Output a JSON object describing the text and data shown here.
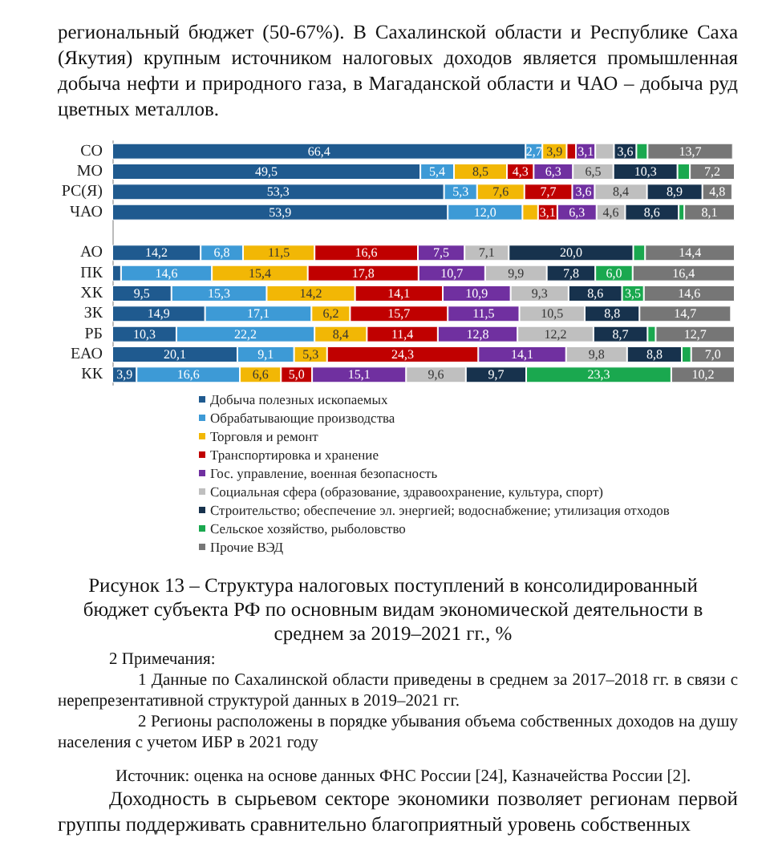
{
  "chart_data": {
    "type": "bar",
    "orientation": "horizontal",
    "stacked": true,
    "title": "Рисунок 13 – Структура налоговых поступлений в консолидированный бюджет субъекта РФ по основным видам экономической деятельности в среднем за 2019–2021 гг., %",
    "annotations": [
      "региональный бюджет (50-67%). В Сахалинской области и Республике Саха (Якутия) крупным источником налоговых доходов является промышленная добыча нефти и природного газа, в Магаданской области и ЧАО – добыча руд цветных металлов.",
      "2 Примечания:",
      "1 Данные по Сахалинской области приведены в среднем за 2017–2018 гг. в связи с нерепрезентативной структурой данных в 2019–2021 гг.",
      "2 Регионы расположены в порядке убывания объема собственных доходов на душу населения с учетом ИБР в 2021 году",
      "Источник: оценка на основе данных ФНС России [24], Казначейства России [2].",
      "Доходность в сырьевом секторе экономики позволяет регионам первой группы поддерживать сравнительно благоприятный уровень собственных"
    ],
    "categories": [
      "СО",
      "МО",
      "РС(Я)",
      "ЧАО",
      null,
      "АО",
      "ПК",
      "ХК",
      "ЗК",
      "РБ",
      "ЕАО",
      "КК"
    ],
    "xlim": [
      0,
      100
    ],
    "tick_labels": "y",
    "grid": false,
    "legend": "bottom",
    "series": [
      {
        "name": "Добыча полезных ископаемых",
        "color": "#1f5a8f",
        "values": [
          66.4,
          49.5,
          53.3,
          53.9,
          null,
          14.2,
          1.4,
          9.5,
          14.9,
          10.3,
          20.1,
          3.9
        ],
        "value_labels": [
          "66,4",
          "49,5",
          "53,3",
          "53,9",
          null,
          "14,2",
          null,
          "9,5",
          "14,9",
          "10,3",
          "20,1",
          "3,9"
        ]
      },
      {
        "name": "Обрабатывающие производства",
        "color": "#3d9ad6",
        "values": [
          2.7,
          5.4,
          5.3,
          12.0,
          null,
          6.8,
          14.6,
          15.3,
          17.1,
          22.2,
          9.1,
          16.6
        ],
        "value_labels": [
          "2,7",
          "5,4",
          "5,3",
          "12,0",
          null,
          "6,8",
          "14,6",
          "15,3",
          "17,1",
          "22,2",
          "9,1",
          "16,6"
        ]
      },
      {
        "name": "Торговля и ремонт",
        "color": "#f2b705",
        "values": [
          3.9,
          8.5,
          7.6,
          2.5,
          null,
          11.5,
          15.4,
          14.2,
          6.2,
          8.4,
          5.3,
          6.6
        ],
        "value_labels": [
          "3,9",
          "8,5",
          "7,6",
          null,
          null,
          "11,5",
          "15,4",
          "14,2",
          "6,2",
          "8,4",
          "5,3",
          "6,6"
        ]
      },
      {
        "name": "Транспортировка и хранение",
        "color": "#c00000",
        "values": [
          1.5,
          4.3,
          7.7,
          3.1,
          null,
          16.6,
          17.8,
          14.1,
          15.7,
          11.4,
          24.3,
          5.0
        ],
        "value_labels": [
          null,
          "4,3",
          "7,7",
          "3,1",
          null,
          "16,6",
          "17,8",
          "14,1",
          "15,7",
          "11,4",
          "24,3",
          "5,0"
        ]
      },
      {
        "name": "Гос. управление, военная безопасность",
        "color": "#7030a0",
        "values": [
          3.1,
          6.3,
          3.6,
          6.3,
          null,
          7.5,
          10.7,
          10.9,
          11.5,
          12.8,
          14.1,
          15.1
        ],
        "value_labels": [
          "3,1",
          "6,3",
          "3,6",
          "6,3",
          null,
          "7,5",
          "10,7",
          "10,9",
          "11,5",
          "12,8",
          "14,1",
          "15,1"
        ]
      },
      {
        "name": "Социальная сфера (образование, здравоохранение, культура, спорт)",
        "color": "#bfbfbf",
        "values": [
          3.0,
          6.5,
          8.4,
          4.6,
          null,
          7.1,
          9.9,
          9.3,
          10.5,
          12.2,
          9.8,
          9.6
        ],
        "value_labels": [
          null,
          "6,5",
          "8,4",
          "4,6",
          null,
          "7,1",
          "9,9",
          "9,3",
          "10,5",
          "12,2",
          "9,8",
          "9,6"
        ]
      },
      {
        "name": "Строительство; обеспечение эл. энергией; водоснабжение; утилизация отходов",
        "color": "#17324d",
        "values": [
          3.6,
          10.3,
          8.9,
          8.6,
          null,
          20.0,
          7.8,
          8.6,
          8.8,
          8.7,
          8.8,
          9.7
        ],
        "value_labels": [
          "3,6",
          "10,3",
          "8,9",
          "8,6",
          null,
          "20,0",
          "7,8",
          "8,6",
          "8,8",
          "8,7",
          "8,8",
          "9,7"
        ]
      },
      {
        "name": "Сельское хозяйство, рыболовство",
        "color": "#1aa84f",
        "values": [
          1.8,
          2.0,
          null,
          0.9,
          null,
          1.9,
          6.0,
          3.5,
          null,
          1.3,
          1.5,
          23.3
        ],
        "value_labels": [
          null,
          null,
          null,
          null,
          null,
          null,
          "6,0",
          "3,5",
          null,
          null,
          null,
          "23,3"
        ]
      },
      {
        "name": "Прочие ВЭД",
        "color": "#767676",
        "values": [
          13.7,
          7.2,
          4.8,
          8.1,
          null,
          14.4,
          16.4,
          14.6,
          14.7,
          12.7,
          7.0,
          10.2
        ],
        "value_labels": [
          "13,7",
          "7,2",
          "4,8",
          "8,1",
          null,
          "14,4",
          "16,4",
          "14,6",
          "14,7",
          "12,7",
          "7,0",
          "10,2"
        ]
      }
    ]
  }
}
